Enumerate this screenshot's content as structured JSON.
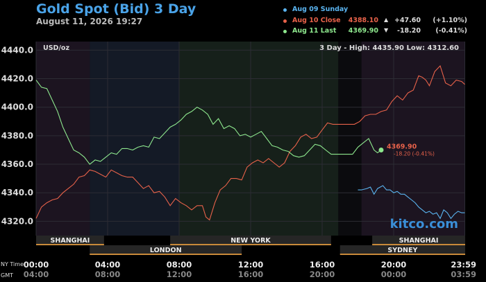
{
  "header": {
    "title": "Gold Spot (Bid) 3 Day",
    "date": "August 11, 2026 19:27"
  },
  "legend": [
    {
      "label": "Aug 09 Sunday",
      "value": "",
      "arrow": "",
      "change": "",
      "pct": "",
      "color": "#5ab4f0"
    },
    {
      "label": "Aug 10 Close",
      "value": "4388.10",
      "arrow": "▲",
      "change": "+47.60",
      "pct": "(+1.10%)",
      "color": "#e8624a"
    },
    {
      "label": "Aug 11 Last",
      "value": "4369.90",
      "arrow": "▼",
      "change": "-18.20",
      "pct": "(-0.41%)",
      "color": "#8ee88e"
    }
  ],
  "chart_data": {
    "type": "line",
    "unit_label": "USD/oz",
    "range_label": "3 Day - High: 4435.90   Low: 4312.60",
    "ylim": [
      4310,
      4446
    ],
    "y_ticks": [
      "4440.0",
      "4420.0",
      "4400.0",
      "4380.0",
      "4360.0",
      "4340.0",
      "4320.0"
    ],
    "x_ticks_ny": [
      "00:00",
      "04:00",
      "08:00",
      "12:00",
      "16:00",
      "20:00",
      "23:59"
    ],
    "x_ticks_gmt": [
      "04:00",
      "08:00",
      "12:00",
      "16:00",
      "20:00",
      "00:00",
      "03:59"
    ],
    "axis_row_labels": [
      "NY Time",
      "GMT"
    ],
    "sessions_top": [
      "SHANGHAI",
      "NEW YORK",
      "SHANGHAI"
    ],
    "sessions_bottom": [
      "LONDON",
      "SYDNEY"
    ],
    "last_label": "4369.90",
    "last_change": "-18.20 (-0.41%)",
    "watermark": "kitco.com",
    "series": [
      {
        "name": "Aug 09 Sunday",
        "color": "#5ab4f0",
        "x": [
          18.0,
          18.2,
          18.5,
          18.7,
          18.9,
          19.1,
          19.4,
          19.6,
          19.8,
          20.0,
          20.2,
          20.4,
          20.6,
          20.8,
          21.0,
          21.2,
          21.4,
          21.6,
          21.8,
          22.0,
          22.2,
          22.4,
          22.6,
          22.8,
          23.0,
          23.2,
          23.4,
          23.6,
          23.8,
          23.98
        ],
        "y": [
          4342,
          4342,
          4343,
          4344,
          4339,
          4343,
          4345,
          4342,
          4342,
          4340,
          4341,
          4339,
          4339,
          4337,
          4335,
          4333,
          4330,
          4328,
          4326,
          4327,
          4325,
          4326,
          4322,
          4328,
          4326,
          4322,
          4325,
          4327,
          4326,
          4326
        ]
      },
      {
        "name": "Aug 10 Close",
        "color": "#e8624a",
        "x": [
          0.0,
          0.3,
          0.6,
          0.9,
          1.2,
          1.5,
          1.8,
          2.1,
          2.4,
          2.7,
          3.0,
          3.3,
          3.6,
          3.9,
          4.2,
          4.5,
          4.8,
          5.1,
          5.4,
          5.7,
          6.0,
          6.3,
          6.6,
          6.9,
          7.2,
          7.5,
          7.8,
          8.1,
          8.4,
          8.7,
          9.0,
          9.3,
          9.5,
          9.7,
          10.0,
          10.3,
          10.6,
          10.9,
          11.2,
          11.5,
          11.8,
          12.1,
          12.4,
          12.7,
          13.0,
          13.3,
          13.6,
          13.9,
          14.2,
          14.5,
          14.8,
          15.1,
          15.4,
          15.7,
          16.0,
          16.3,
          16.6,
          16.9,
          17.2,
          17.5,
          17.8,
          18.1,
          18.4,
          18.7,
          19.0,
          19.3,
          19.6,
          19.9,
          20.2,
          20.5,
          20.8,
          21.1,
          21.4,
          21.6,
          21.8,
          22.0,
          22.3,
          22.6,
          22.9,
          23.2,
          23.5,
          23.8,
          23.98
        ],
        "y": [
          4322,
          4330,
          4333,
          4335,
          4336,
          4340,
          4343,
          4346,
          4351,
          4352,
          4356,
          4355,
          4353,
          4351,
          4356,
          4354,
          4352,
          4351,
          4351,
          4347,
          4343,
          4345,
          4340,
          4341,
          4337,
          4331,
          4336,
          4333,
          4331,
          4328,
          4331,
          4331,
          4323,
          4321,
          4333,
          4342,
          4345,
          4350,
          4350,
          4349,
          4358,
          4361,
          4363,
          4361,
          4364,
          4361,
          4358,
          4361,
          4369,
          4373,
          4379,
          4381,
          4378,
          4379,
          4384,
          4389,
          4388,
          4388,
          4388,
          4388,
          4388,
          4390,
          4394,
          4395,
          4395,
          4397,
          4398,
          4404,
          4408,
          4405,
          4410,
          4412,
          4422,
          4421,
          4419,
          4415,
          4425,
          4429,
          4417,
          4415,
          4419,
          4418,
          4416
        ]
      },
      {
        "name": "Aug 11 Last",
        "color": "#8ee88e",
        "x": [
          0.0,
          0.3,
          0.6,
          0.9,
          1.2,
          1.5,
          1.8,
          2.1,
          2.4,
          2.7,
          3.0,
          3.3,
          3.6,
          3.9,
          4.2,
          4.5,
          4.8,
          5.1,
          5.4,
          5.7,
          6.0,
          6.3,
          6.6,
          6.9,
          7.2,
          7.5,
          7.8,
          8.1,
          8.4,
          8.7,
          9.0,
          9.3,
          9.6,
          9.9,
          10.2,
          10.5,
          10.8,
          11.1,
          11.4,
          11.7,
          12.0,
          12.3,
          12.6,
          12.9,
          13.2,
          13.5,
          13.8,
          14.1,
          14.4,
          14.7,
          15.0,
          15.3,
          15.6,
          15.9,
          16.2,
          16.5,
          16.8,
          17.1,
          17.4,
          17.7,
          18.0,
          18.3,
          18.6,
          18.9,
          19.1,
          19.3
        ],
        "y": [
          4419,
          4414,
          4413,
          4405,
          4397,
          4386,
          4378,
          4370,
          4368,
          4365,
          4360,
          4363,
          4362,
          4365,
          4368,
          4367,
          4371,
          4371,
          4370,
          4372,
          4373,
          4372,
          4379,
          4378,
          4382,
          4386,
          4388,
          4391,
          4395,
          4397,
          4400,
          4398,
          4395,
          4388,
          4392,
          4385,
          4387,
          4385,
          4380,
          4381,
          4379,
          4381,
          4383,
          4378,
          4373,
          4372,
          4370,
          4369,
          4366,
          4365,
          4366,
          4370,
          4374,
          4373,
          4370,
          4367,
          4367,
          4367,
          4367,
          4367,
          4372,
          4375,
          4378,
          4370,
          4368,
          4370
        ]
      }
    ]
  }
}
